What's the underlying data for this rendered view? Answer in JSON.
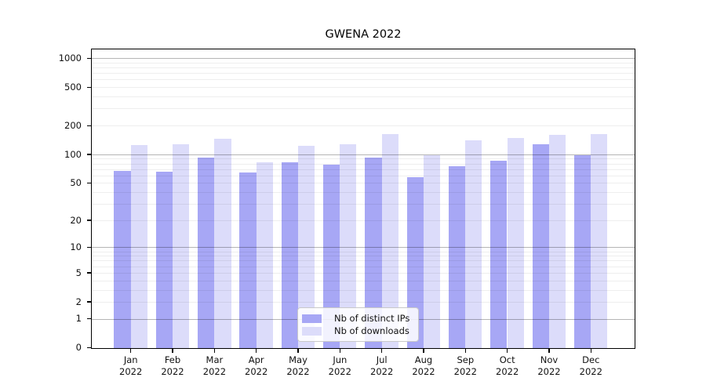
{
  "title": "GWENA 2022",
  "chart_data": {
    "type": "bar",
    "title": "GWENA 2022",
    "categories": [
      "Jan 2022",
      "Feb 2022",
      "Mar 2022",
      "Apr 2022",
      "May 2022",
      "Jun 2022",
      "Jul 2022",
      "Aug 2022",
      "Sep 2022",
      "Oct 2022",
      "Nov 2022",
      "Dec 2022"
    ],
    "series": [
      {
        "name": "Nb of distinct IPs",
        "color": "#a7a7f5",
        "values": [
          67,
          66,
          93,
          65,
          83,
          78,
          93,
          58,
          75,
          87,
          128,
          98
        ]
      },
      {
        "name": "Nb of downloads",
        "color": "#dcdcfa",
        "values": [
          125,
          128,
          146,
          83,
          124,
          129,
          164,
          98,
          142,
          148,
          160,
          164
        ]
      }
    ],
    "xlabel": "",
    "ylabel": "",
    "y_scale": "symlog",
    "y_tick_values": [
      0,
      1,
      2,
      5,
      10,
      20,
      50,
      100,
      200,
      500,
      1000
    ],
    "y_major_grid_values": [
      1,
      10,
      100,
      1000
    ],
    "ylim": [
      0,
      1250
    ],
    "grid": "horizontal major+minor",
    "legend_position": "lower center inside"
  },
  "legend": {
    "items": [
      {
        "label": "Nb of distinct IPs",
        "color": "#a7a7f5"
      },
      {
        "label": "Nb of downloads",
        "color": "#dcdcfa"
      }
    ]
  },
  "colors": {
    "background": "#ffffff",
    "bar_distinct_ips": "#a7a7f5",
    "bar_downloads": "#dcdcfa",
    "axis": "#000000",
    "grid_major": "rgba(0,0,0,0.29)",
    "grid_minor": "rgba(0,0,0,0.065)",
    "legend_border": "#c9c9c9",
    "text": "#111111"
  }
}
